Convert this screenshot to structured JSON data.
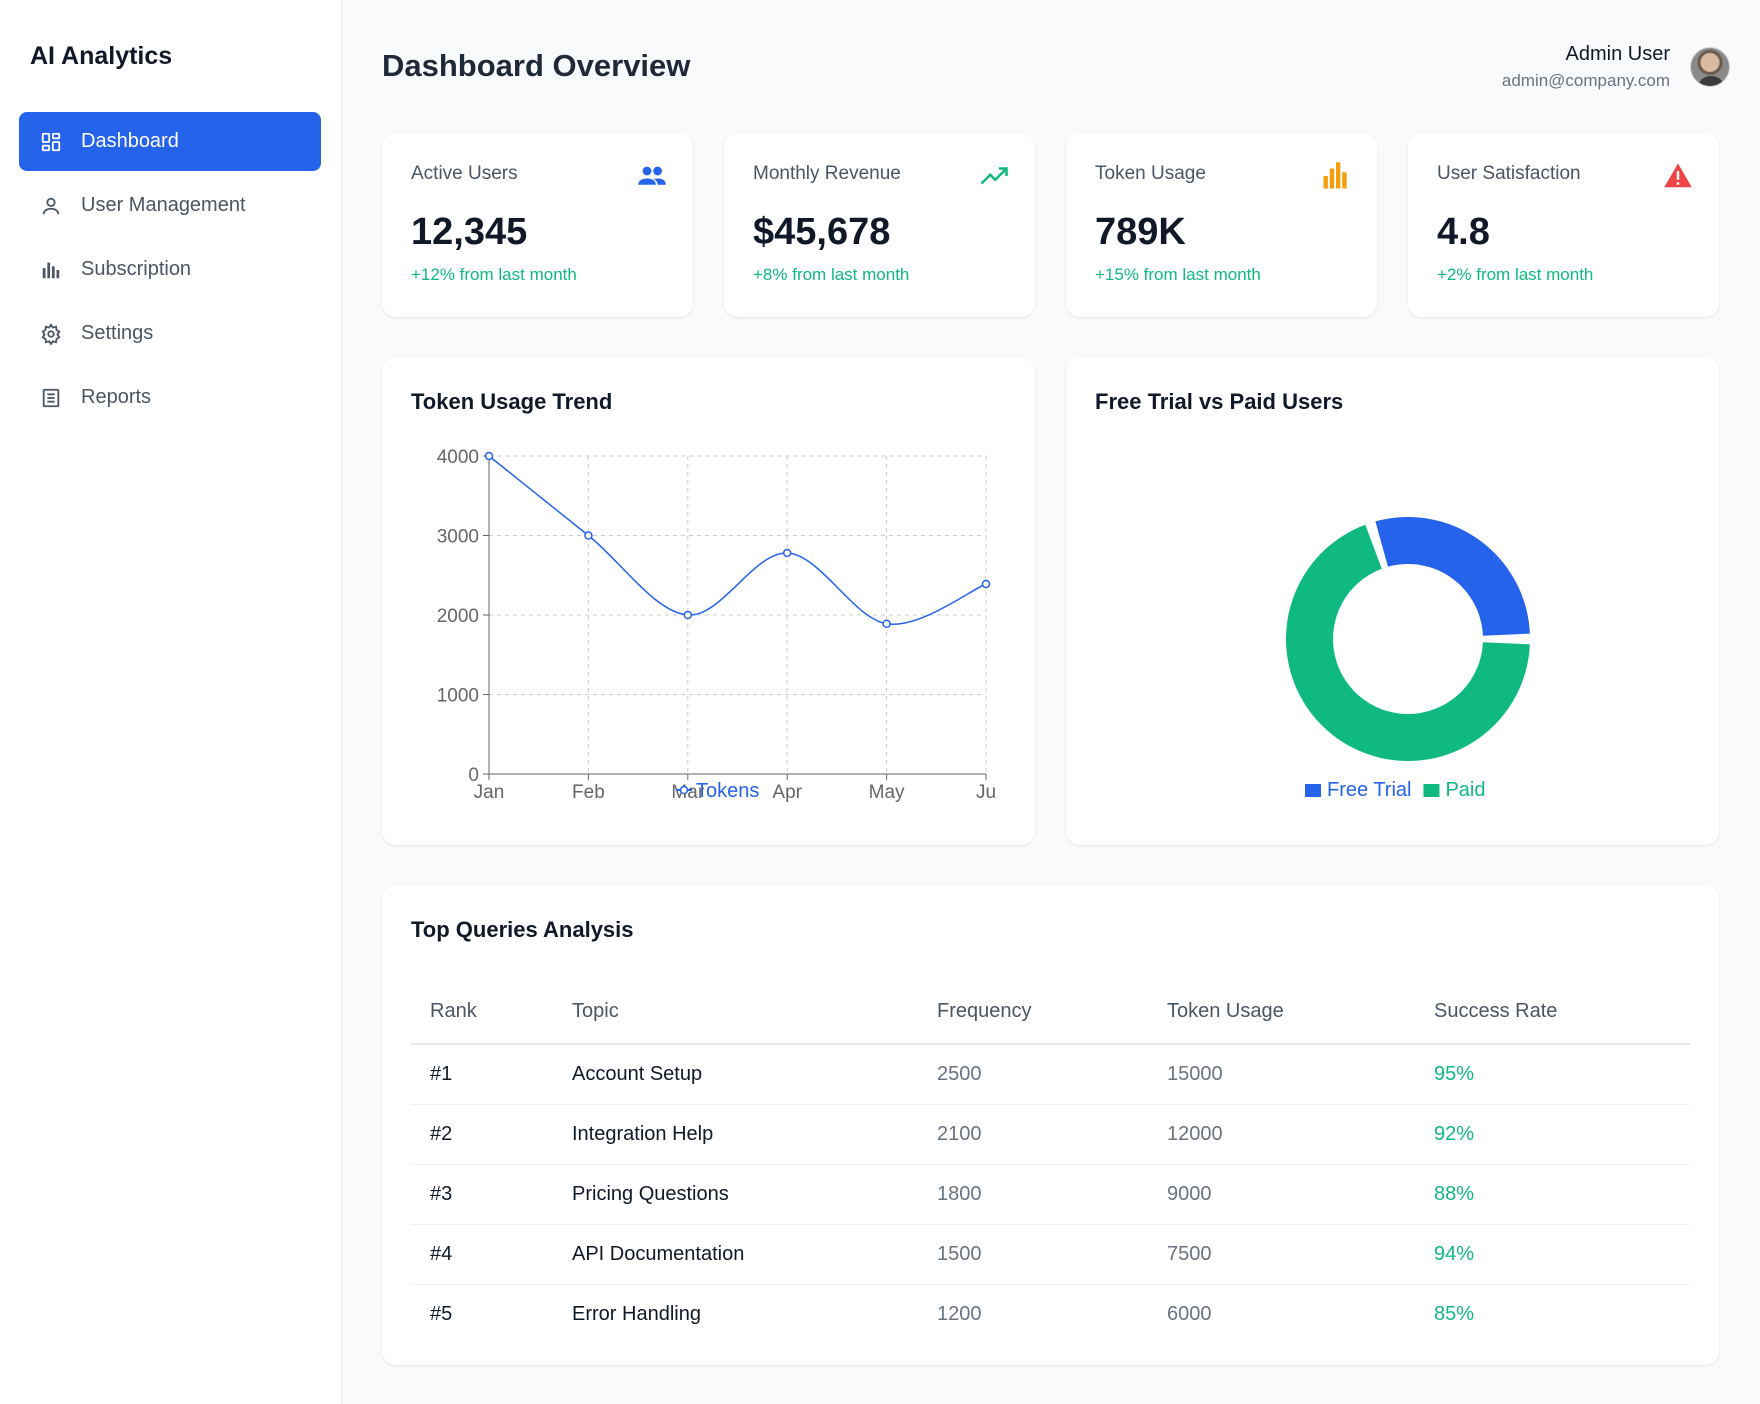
{
  "app": {
    "brand": "AI Analytics"
  },
  "sidebar": {
    "items": [
      {
        "label": "Dashboard",
        "icon": "dashboard-grid-icon",
        "active": true
      },
      {
        "label": "User Management",
        "icon": "user-icon",
        "active": false
      },
      {
        "label": "Subscription",
        "icon": "bar-chart-icon",
        "active": false
      },
      {
        "label": "Settings",
        "icon": "gear-icon",
        "active": false
      },
      {
        "label": "Reports",
        "icon": "document-icon",
        "active": false
      }
    ]
  },
  "header": {
    "title": "Dashboard Overview",
    "user_name": "Admin User",
    "user_email": "admin@company.com"
  },
  "stats": [
    {
      "label": "Active Users",
      "value": "12,345",
      "change": "+12% from last month",
      "icon": "users-icon",
      "icon_color": "#2563eb"
    },
    {
      "label": "Monthly Revenue",
      "value": "$45,678",
      "change": "+8% from last month",
      "icon": "trending-up-icon",
      "icon_color": "#10b981"
    },
    {
      "label": "Token Usage",
      "value": "789K",
      "change": "+15% from last month",
      "icon": "bar-chart-icon",
      "icon_color": "#f59e0b"
    },
    {
      "label": "User Satisfaction",
      "value": "4.8",
      "change": "+2% from last month",
      "icon": "warning-icon",
      "icon_color": "#ef4444"
    }
  ],
  "line_card": {
    "title": "Token Usage Trend"
  },
  "donut_card": {
    "title": "Free Trial vs Paid Users"
  },
  "chart_data": [
    {
      "type": "line",
      "title": "Token Usage Trend",
      "categories": [
        "Jan",
        "Feb",
        "Mar",
        "Apr",
        "May",
        "Ju"
      ],
      "series": [
        {
          "name": "Tokens",
          "values": [
            4000,
            3000,
            2000,
            2780,
            1890,
            2390
          ],
          "color": "#2563eb"
        }
      ],
      "yticks": [
        0,
        1000,
        2000,
        3000,
        4000
      ],
      "ylim": [
        0,
        4000
      ],
      "grid": true,
      "legend": "bottom-center"
    },
    {
      "type": "pie",
      "title": "Free Trial vs Paid Users",
      "labels": [
        "Free Trial",
        "Paid"
      ],
      "values": [
        30,
        70
      ],
      "colors": [
        "#2563eb",
        "#10b981"
      ],
      "legend": "bottom-center"
    }
  ],
  "queries": {
    "title": "Top Queries Analysis",
    "columns": [
      "Rank",
      "Topic",
      "Frequency",
      "Token Usage",
      "Success Rate"
    ],
    "rows": [
      {
        "rank": "#1",
        "topic": "Account Setup",
        "frequency": "2500",
        "tokens": "15000",
        "rate": "95%"
      },
      {
        "rank": "#2",
        "topic": "Integration Help",
        "frequency": "2100",
        "tokens": "12000",
        "rate": "92%"
      },
      {
        "rank": "#3",
        "topic": "Pricing Questions",
        "frequency": "1800",
        "tokens": "9000",
        "rate": "88%"
      },
      {
        "rank": "#4",
        "topic": "API Documentation",
        "frequency": "1500",
        "tokens": "7500",
        "rate": "94%"
      },
      {
        "rank": "#5",
        "topic": "Error Handling",
        "frequency": "1200",
        "tokens": "6000",
        "rate": "85%"
      }
    ]
  }
}
